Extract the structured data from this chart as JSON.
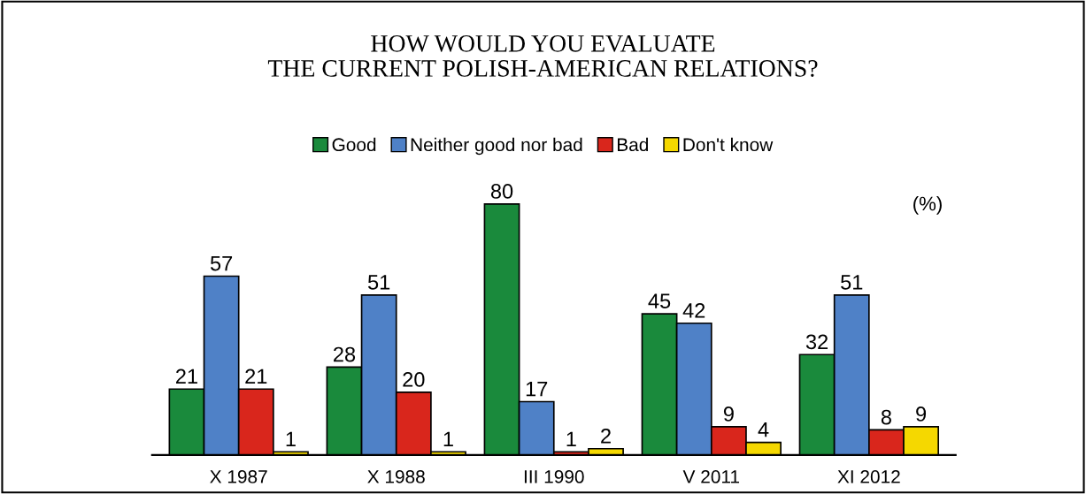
{
  "chart_data": {
    "type": "bar",
    "title": "HOW WOULD YOU EVALUATE\nTHE CURRENT POLISH-AMERICAN RELATIONS?",
    "categories": [
      "X 1987",
      "X 1988",
      "III 1990",
      "V 2011",
      "XI 2012"
    ],
    "series": [
      {
        "name": "Good",
        "color": "#1a8a3c",
        "values": [
          21,
          28,
          80,
          45,
          32
        ]
      },
      {
        "name": "Neither good nor bad",
        "color": "#4f81c7",
        "values": [
          57,
          51,
          17,
          42,
          51
        ]
      },
      {
        "name": "Bad",
        "color": "#d9261c",
        "values": [
          21,
          20,
          1,
          9,
          8
        ]
      },
      {
        "name": "Don't know",
        "color": "#f5d800",
        "values": [
          1,
          1,
          2,
          4,
          9
        ]
      }
    ],
    "data_labels": true,
    "legend": "top",
    "grid": false,
    "tick_labels": "x",
    "annotations": [
      "(%)"
    ]
  }
}
